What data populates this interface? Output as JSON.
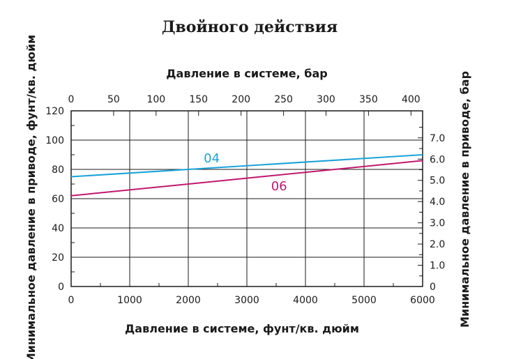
{
  "chart_data": {
    "type": "line",
    "title": "Двойного действия",
    "xlabel": "Давление в системе, фунт/кв. дюйм",
    "x2label": "Давление в системе, бар",
    "ylabel": "Минимальное давление в приводе, фунт/кв. дюйм",
    "y2label": "Минимальное давление в приводе, бар",
    "xlim": [
      0,
      6000
    ],
    "ylim": [
      0,
      120
    ],
    "x2lim": [
      0,
      413.7
    ],
    "y2lim": [
      0,
      8.274
    ],
    "grid": true,
    "xticks": [
      "0",
      "1000",
      "2000",
      "3000",
      "4000",
      "5000",
      "6000"
    ],
    "yticks": [
      "0",
      "20",
      "40",
      "60",
      "80",
      "100",
      "120"
    ],
    "x2ticks": [
      "0",
      "50",
      "100",
      "150",
      "200",
      "250",
      "300",
      "350",
      "400"
    ],
    "y2ticks": [
      "0",
      "1.0",
      "2.0",
      "3.0",
      "4.0",
      "5.0",
      "6.0",
      "7.0"
    ],
    "series": [
      {
        "name": "04",
        "color": "#1ba3d8",
        "x": [
          0,
          6000
        ],
        "y": [
          75,
          90
        ]
      },
      {
        "name": "06",
        "color": "#c0186e",
        "x": [
          0,
          6000
        ],
        "y": [
          62,
          86
        ]
      }
    ]
  }
}
